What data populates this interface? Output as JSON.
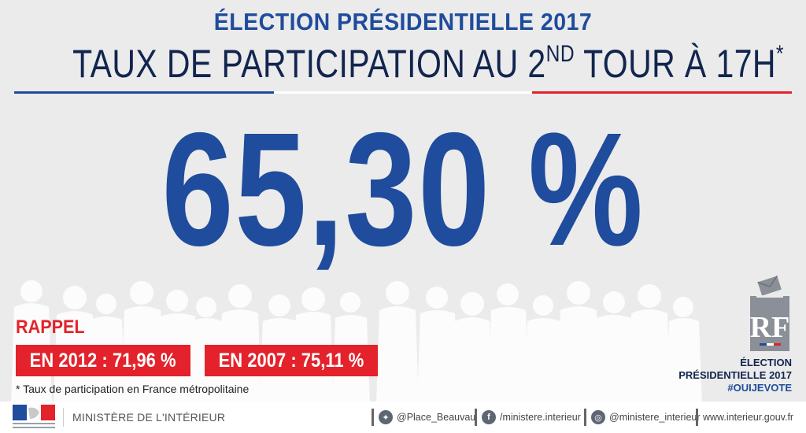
{
  "header": {
    "title_top": "ÉLECTION PRÉSIDENTIELLE 2017",
    "title_main_before": "TAUX DE PARTICIPATION AU 2",
    "title_main_sup": "ND",
    "title_main_after": " TOUR À 17H",
    "title_main_star": "*"
  },
  "main": {
    "figure": "65,30 %"
  },
  "rappel": {
    "label": "RAPPEL",
    "items": [
      {
        "text": "EN 2012 : 71,96 %"
      },
      {
        "text": "EN 2007 : 75,11 %"
      }
    ],
    "footnote": "* Taux de participation en France métropolitaine"
  },
  "brand": {
    "line1": "ÉLECTION",
    "line2": "PRÉSIDENTIELLE 2017",
    "hashtag": "#OUIJEVOTE",
    "monogram": "RF"
  },
  "footer": {
    "ministry": "MINISTÈRE DE L'INTÉRIEUR",
    "twitter": "@Place_Beauvau",
    "facebook": "/ministere.interieur",
    "instagram": "@ministere_interieur",
    "website": "www.interieur.gouv.fr"
  },
  "colors": {
    "blue": "#1f4c9c",
    "navy": "#12254f",
    "red": "#e3222b",
    "background": "#ebebeb"
  }
}
